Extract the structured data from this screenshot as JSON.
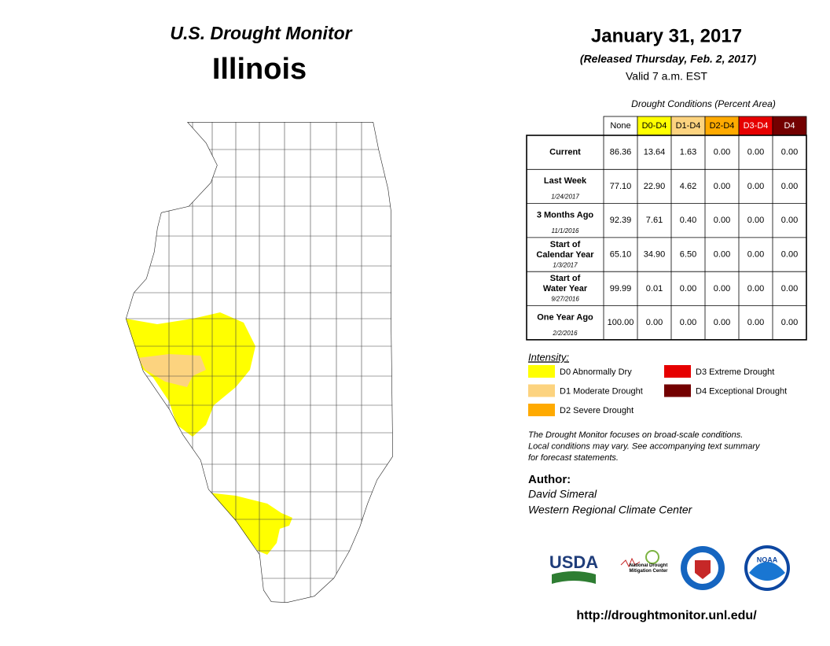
{
  "header": {
    "title": "U.S. Drought Monitor",
    "state": "Illinois",
    "date": "January 31, 2017",
    "released": "(Released Thursday, Feb. 2, 2017)",
    "valid": "Valid 7 a.m. EST"
  },
  "table": {
    "caption": "Drought Conditions (Percent Area)",
    "columns": [
      {
        "label": "None",
        "color": "#ffffff"
      },
      {
        "label": "D0-D4",
        "color": "#ffff00"
      },
      {
        "label": "D1-D4",
        "color": "#fcd37f"
      },
      {
        "label": "D2-D4",
        "color": "#ffaa00"
      },
      {
        "label": "D3-D4",
        "color": "#e60000"
      },
      {
        "label": "D4",
        "color": "#730000"
      }
    ],
    "rows": [
      {
        "label": "Current",
        "cells": [
          "86.36",
          "13.64",
          "1.63",
          "0.00",
          "0.00",
          "0.00"
        ]
      },
      {
        "label": "Last Week",
        "date": "1/24/2017",
        "cells": [
          "77.10",
          "22.90",
          "4.62",
          "0.00",
          "0.00",
          "0.00"
        ]
      },
      {
        "label": "3 Months Ago",
        "date": "11/1/2016",
        "cells": [
          "92.39",
          "7.61",
          "0.40",
          "0.00",
          "0.00",
          "0.00"
        ]
      },
      {
        "label": "Start of Calendar Year",
        "date": "1/3/2017",
        "cells": [
          "65.10",
          "34.90",
          "6.50",
          "0.00",
          "0.00",
          "0.00"
        ]
      },
      {
        "label": "Start of Water Year",
        "date": "9/27/2016",
        "cells": [
          "99.99",
          "0.01",
          "0.00",
          "0.00",
          "0.00",
          "0.00"
        ]
      },
      {
        "label": "One Year Ago",
        "date": "2/2/2016",
        "cells": [
          "100.00",
          "0.00",
          "0.00",
          "0.00",
          "0.00",
          "0.00"
        ]
      }
    ]
  },
  "legend": {
    "title": "Intensity:",
    "items": [
      {
        "label": "D0 Abnormally Dry",
        "color": "#ffff00"
      },
      {
        "label": "D1 Moderate Drought",
        "color": "#fcd37f"
      },
      {
        "label": "D2 Severe Drought",
        "color": "#ffaa00"
      },
      {
        "label": "D3 Extreme Drought",
        "color": "#e60000"
      },
      {
        "label": "D4 Exceptional Drought",
        "color": "#730000"
      }
    ]
  },
  "note": [
    "The Drought Monitor focuses on broad-scale conditions.",
    "Local conditions may vary. See accompanying text summary",
    "for forecast statements."
  ],
  "author": {
    "title": "Author:",
    "name": "David Simeral",
    "org": "Western Regional Climate Center"
  },
  "logos": {
    "usda": "USDA",
    "ndmc": "National Drought Mitigation Center",
    "noaa": "NOAA"
  },
  "url": "http://droughtmonitor.unl.edu/"
}
